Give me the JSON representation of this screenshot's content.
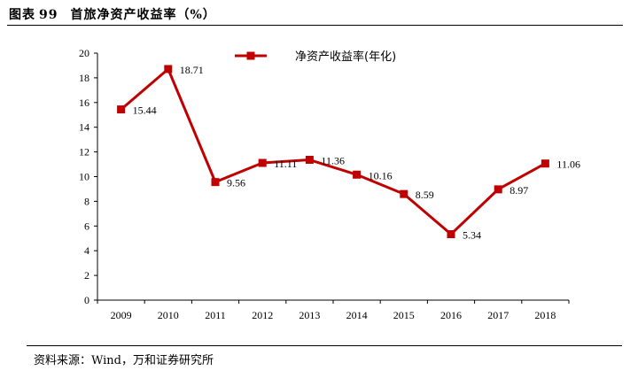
{
  "header": {
    "label": "图表",
    "number": "99",
    "title": "首旅净资产收益率（%）"
  },
  "footer": {
    "source": "资料来源：Wind，万和证券研究所"
  },
  "colors": {
    "series": "#c00000"
  },
  "chart_data": {
    "type": "line",
    "title": "",
    "xlabel": "",
    "ylabel": "",
    "x": [
      "2009",
      "2010",
      "2011",
      "2012",
      "2013",
      "2014",
      "2015",
      "2016",
      "2017",
      "2018"
    ],
    "series": [
      {
        "name": "净资产收益率(年化)",
        "values": [
          15.44,
          18.71,
          9.56,
          11.11,
          11.36,
          10.16,
          8.59,
          5.34,
          8.97,
          11.06
        ],
        "labels": [
          "15.44",
          "18.71",
          "9.56",
          "11.11",
          "11.36",
          "10.16",
          "8.59",
          "5.34",
          "8.97",
          "11.06"
        ]
      }
    ],
    "ylim": [
      0,
      20
    ],
    "yticks": [
      "0",
      "2",
      "4",
      "6",
      "8",
      "10",
      "12",
      "14",
      "16",
      "18",
      "20"
    ],
    "grid": false,
    "legend": "top"
  }
}
